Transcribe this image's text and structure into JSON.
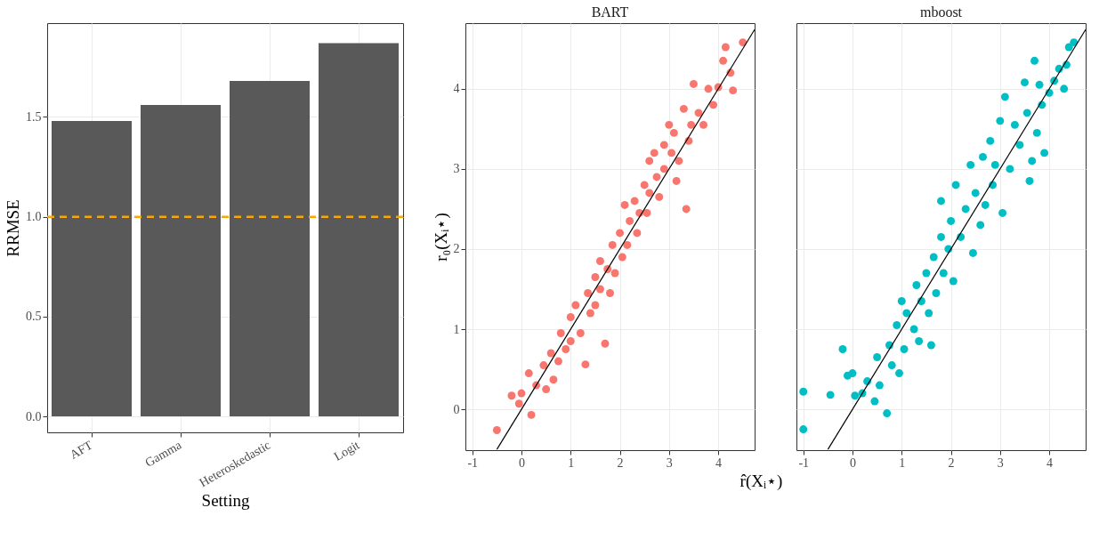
{
  "chart_data": [
    {
      "type": "bar",
      "categories": [
        "AFT",
        "Gamma",
        "Heteroskedastic",
        "Logit"
      ],
      "values": [
        1.48,
        1.56,
        1.68,
        1.87
      ],
      "color": "#595959",
      "xlabel": "Setting",
      "ylabel": "RRMSE",
      "ylim": [
        -0.08,
        1.97
      ],
      "yticks": [
        {
          "value": 0,
          "label": "0.0"
        },
        {
          "value": 0.5,
          "label": "0.5"
        },
        {
          "value": 1,
          "label": "1.0"
        },
        1.5
      ],
      "grid": true,
      "legend": false,
      "ref_lines": [
        {
          "axis": "y",
          "value": 1,
          "color": "#ffa500",
          "line_style": "dashed"
        }
      ]
    },
    {
      "type": "scatter",
      "title": "BART",
      "xlabel": "r̂(Xᵢ⋆)",
      "ylabel": "r₀(Xᵢ⋆)",
      "xlim": [
        -1.14,
        4.74
      ],
      "ylim": [
        -0.51,
        4.82
      ],
      "xticks": [
        -1,
        0,
        1,
        2,
        3,
        4
      ],
      "yticks": [
        0,
        1,
        2,
        3,
        4
      ],
      "grid": true,
      "legend": false,
      "series": [
        {
          "color": "#f8766d",
          "marker": "circle",
          "x": [
            -0.5,
            -0.2,
            -0.05,
            0.0,
            0.2,
            0.15,
            0.3,
            0.45,
            0.5,
            0.6,
            0.65,
            0.75,
            0.8,
            0.9,
            1.0,
            1.0,
            1.1,
            1.2,
            1.3,
            1.35,
            1.4,
            1.5,
            1.5,
            1.6,
            1.6,
            1.7,
            1.75,
            1.8,
            1.85,
            1.9,
            2.0,
            2.05,
            2.1,
            2.15,
            2.2,
            2.3,
            2.35,
            2.4,
            2.5,
            2.55,
            2.6,
            2.7,
            2.75,
            2.8,
            2.9,
            3.0,
            3.05,
            3.1,
            3.15,
            3.2,
            3.3,
            3.35,
            3.4,
            3.45,
            3.5,
            3.6,
            3.7,
            3.8,
            3.9,
            4.0,
            4.1,
            4.15,
            4.25,
            4.3,
            4.5,
            2.9,
            2.6
          ],
          "values": [
            -0.26,
            0.17,
            0.07,
            0.2,
            -0.07,
            0.45,
            0.3,
            0.55,
            0.25,
            0.7,
            0.37,
            0.6,
            0.95,
            0.75,
            1.15,
            0.85,
            1.3,
            0.95,
            0.56,
            1.45,
            1.2,
            1.65,
            1.3,
            1.85,
            1.5,
            0.82,
            1.75,
            1.45,
            2.05,
            1.7,
            2.2,
            1.9,
            2.55,
            2.05,
            2.35,
            2.6,
            2.2,
            2.45,
            2.8,
            2.45,
            2.7,
            3.2,
            2.9,
            2.65,
            3.0,
            3.55,
            3.2,
            3.45,
            2.85,
            3.1,
            3.75,
            2.5,
            3.35,
            3.55,
            4.06,
            3.7,
            3.55,
            4.0,
            3.8,
            4.02,
            4.35,
            4.52,
            4.2,
            3.98,
            4.58,
            3.3,
            3.1
          ]
        },
        {
          "type": "line",
          "color": "#000000",
          "x": [
            -0.5,
            4.74
          ],
          "values": [
            -0.5,
            4.74
          ]
        }
      ]
    },
    {
      "type": "scatter",
      "title": "mboost",
      "xlim": [
        -1.14,
        4.74
      ],
      "ylim": [
        -0.51,
        4.82
      ],
      "xticks": [
        -1,
        0,
        1,
        2,
        3,
        4
      ],
      "yticks": [
        0,
        1,
        2,
        3,
        4
      ],
      "tick_labels": "x",
      "grid": true,
      "legend": false,
      "series": [
        {
          "color": "#00bfc4",
          "marker": "circle",
          "x": [
            -1,
            -1,
            -0.45,
            -0.2,
            -0.1,
            0.0,
            0.05,
            0.2,
            0.3,
            0.45,
            0.5,
            0.55,
            0.7,
            0.75,
            0.8,
            0.9,
            0.95,
            1.0,
            1.05,
            1.1,
            1.25,
            1.3,
            1.35,
            1.4,
            1.5,
            1.55,
            1.6,
            1.65,
            1.7,
            1.8,
            1.8,
            1.85,
            1.95,
            2.0,
            2.05,
            2.1,
            2.2,
            2.3,
            2.4,
            2.45,
            2.5,
            2.6,
            2.65,
            2.7,
            2.8,
            2.85,
            2.9,
            3.0,
            3.05,
            3.1,
            3.2,
            3.3,
            3.4,
            3.5,
            3.55,
            3.6,
            3.65,
            3.7,
            3.75,
            3.8,
            3.85,
            4.0,
            4.1,
            4.2,
            4.3,
            4.4,
            4.5,
            4.35,
            3.9
          ],
          "values": [
            -0.25,
            0.22,
            0.18,
            0.75,
            0.42,
            0.45,
            0.17,
            0.2,
            0.35,
            0.1,
            0.65,
            0.3,
            -0.05,
            0.8,
            0.55,
            1.05,
            0.45,
            1.35,
            0.75,
            1.2,
            1.0,
            1.55,
            0.85,
            1.35,
            1.7,
            1.2,
            0.8,
            1.9,
            1.45,
            2.15,
            2.6,
            1.7,
            2.0,
            2.35,
            1.6,
            2.8,
            2.15,
            2.5,
            3.05,
            1.95,
            2.7,
            2.3,
            3.15,
            2.55,
            3.35,
            2.8,
            3.05,
            3.6,
            2.45,
            3.9,
            3.0,
            3.55,
            3.3,
            4.08,
            3.7,
            2.85,
            3.1,
            4.35,
            3.45,
            4.05,
            3.8,
            3.95,
            4.1,
            4.25,
            4.0,
            4.52,
            4.58,
            4.3,
            3.2
          ]
        },
        {
          "type": "line",
          "color": "#000000",
          "x": [
            -0.5,
            4.74
          ],
          "values": [
            -0.5,
            4.74
          ]
        }
      ]
    }
  ]
}
